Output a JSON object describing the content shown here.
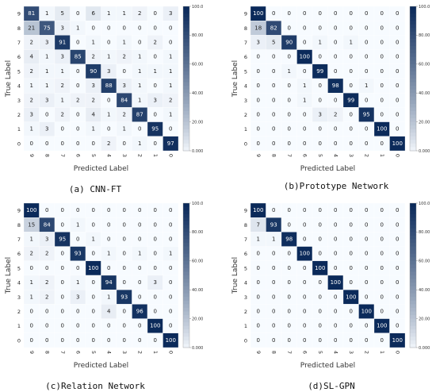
{
  "chart_data": [
    {
      "type": "heatmap",
      "caption": "(a) CNN-FT",
      "xlabel": "Predicted Label",
      "ylabel": "True Label",
      "x_categories": [
        "9",
        "8",
        "7",
        "6",
        "5",
        "4",
        "3",
        "2",
        "1",
        "0"
      ],
      "y_categories": [
        "9",
        "8",
        "7",
        "6",
        "5",
        "4",
        "3",
        "2",
        "1",
        "0"
      ],
      "colorbar": {
        "min": 0,
        "max": 100,
        "ticks": [
          "100.0",
          "80.00",
          "60.00",
          "40.00",
          "20.00",
          "0.000"
        ]
      },
      "matrix": [
        [
          81,
          1,
          5,
          0,
          6,
          1,
          1,
          2,
          0,
          3
        ],
        [
          21,
          75,
          3,
          1,
          0,
          0,
          0,
          0,
          0,
          0
        ],
        [
          2,
          3,
          91,
          0,
          1,
          0,
          1,
          0,
          2,
          0
        ],
        [
          4,
          1,
          3,
          85,
          2,
          1,
          2,
          1,
          0,
          1
        ],
        [
          2,
          1,
          1,
          0,
          90,
          3,
          0,
          1,
          1,
          1
        ],
        [
          1,
          1,
          2,
          0,
          3,
          88,
          3,
          1,
          0,
          1
        ],
        [
          2,
          3,
          1,
          2,
          2,
          0,
          84,
          1,
          3,
          2
        ],
        [
          3,
          0,
          2,
          0,
          4,
          1,
          2,
          87,
          0,
          1
        ],
        [
          1,
          3,
          0,
          0,
          1,
          0,
          1,
          0,
          95,
          0
        ],
        [
          0,
          0,
          0,
          0,
          0,
          2,
          0,
          1,
          0,
          97
        ]
      ]
    },
    {
      "type": "heatmap",
      "caption": "(b)Prototype Network",
      "xlabel": "Predicted Label",
      "ylabel": "True Label",
      "x_categories": [
        "9",
        "8",
        "7",
        "6",
        "5",
        "4",
        "3",
        "2",
        "1",
        "0"
      ],
      "y_categories": [
        "9",
        "8",
        "7",
        "6",
        "5",
        "4",
        "3",
        "2",
        "1",
        "0"
      ],
      "colorbar": {
        "min": 0,
        "max": 100,
        "ticks": [
          "100.0",
          "80.00",
          "60.00",
          "40.00",
          "20.00",
          "0.000"
        ]
      },
      "matrix": [
        [
          100,
          0,
          0,
          0,
          0,
          0,
          0,
          0,
          0,
          0
        ],
        [
          18,
          82,
          0,
          0,
          0,
          0,
          0,
          0,
          0,
          0
        ],
        [
          3,
          5,
          90,
          0,
          1,
          0,
          1,
          0,
          0,
          0
        ],
        [
          0,
          0,
          0,
          100,
          0,
          0,
          0,
          0,
          0,
          0
        ],
        [
          0,
          0,
          1,
          0,
          99,
          0,
          0,
          0,
          0,
          0
        ],
        [
          0,
          0,
          0,
          1,
          0,
          98,
          0,
          1,
          0,
          0
        ],
        [
          0,
          0,
          0,
          1,
          0,
          0,
          99,
          0,
          0,
          0
        ],
        [
          0,
          0,
          0,
          0,
          3,
          2,
          0,
          95,
          0,
          0
        ],
        [
          0,
          0,
          0,
          0,
          0,
          0,
          0,
          0,
          100,
          0
        ],
        [
          0,
          0,
          0,
          0,
          0,
          0,
          0,
          0,
          0,
          100
        ]
      ]
    },
    {
      "type": "heatmap",
      "caption": "(c)Relation Network",
      "xlabel": "Predicted Label",
      "ylabel": "True Label",
      "x_categories": [
        "9",
        "8",
        "7",
        "6",
        "5",
        "4",
        "3",
        "2",
        "1",
        "0"
      ],
      "y_categories": [
        "9",
        "8",
        "7",
        "6",
        "5",
        "4",
        "3",
        "2",
        "1",
        "0"
      ],
      "colorbar": {
        "min": 0,
        "max": 100,
        "ticks": [
          "100.0",
          "80.00",
          "60.00",
          "40.00",
          "20.00",
          "0.000"
        ]
      },
      "matrix": [
        [
          100,
          0,
          0,
          0,
          0,
          0,
          0,
          0,
          0,
          0
        ],
        [
          15,
          84,
          0,
          1,
          0,
          0,
          0,
          0,
          0,
          0
        ],
        [
          1,
          3,
          95,
          0,
          1,
          0,
          0,
          0,
          0,
          0
        ],
        [
          2,
          2,
          0,
          93,
          0,
          1,
          0,
          1,
          0,
          1
        ],
        [
          0,
          0,
          0,
          0,
          100,
          0,
          0,
          0,
          0,
          0
        ],
        [
          1,
          2,
          0,
          1,
          0,
          94,
          0,
          0,
          3,
          0
        ],
        [
          1,
          2,
          0,
          3,
          0,
          1,
          93,
          0,
          0,
          0
        ],
        [
          0,
          0,
          0,
          0,
          0,
          4,
          0,
          96,
          0,
          0
        ],
        [
          0,
          0,
          0,
          0,
          0,
          0,
          0,
          0,
          100,
          0
        ],
        [
          0,
          0,
          0,
          0,
          0,
          0,
          0,
          0,
          0,
          100
        ]
      ]
    },
    {
      "type": "heatmap",
      "caption": "(d)SL-GPN",
      "xlabel": "Predicted Label",
      "ylabel": "True Label",
      "x_categories": [
        "9",
        "8",
        "7",
        "6",
        "5",
        "4",
        "3",
        "2",
        "1",
        "0"
      ],
      "y_categories": [
        "9",
        "8",
        "7",
        "6",
        "5",
        "4",
        "3",
        "2",
        "1",
        "0"
      ],
      "colorbar": {
        "min": 0,
        "max": 100,
        "ticks": [
          "100.0",
          "80.00",
          "60.00",
          "40.00",
          "20.00",
          "0.000"
        ]
      },
      "matrix": [
        [
          100,
          0,
          0,
          0,
          0,
          0,
          0,
          0,
          0,
          0
        ],
        [
          7,
          93,
          0,
          0,
          0,
          0,
          0,
          0,
          0,
          0
        ],
        [
          1,
          1,
          98,
          0,
          0,
          0,
          0,
          0,
          0,
          0
        ],
        [
          0,
          0,
          0,
          100,
          0,
          0,
          0,
          0,
          0,
          0
        ],
        [
          0,
          0,
          0,
          0,
          100,
          0,
          0,
          0,
          0,
          0
        ],
        [
          0,
          0,
          0,
          0,
          0,
          100,
          0,
          0,
          0,
          0
        ],
        [
          0,
          0,
          0,
          0,
          0,
          0,
          100,
          0,
          0,
          0
        ],
        [
          0,
          0,
          0,
          0,
          0,
          0,
          0,
          100,
          0,
          0
        ],
        [
          0,
          0,
          0,
          0,
          0,
          0,
          0,
          0,
          100,
          0
        ],
        [
          0,
          0,
          0,
          0,
          0,
          0,
          0,
          0,
          0,
          100
        ]
      ]
    }
  ],
  "colors": {
    "low": "#f7fbff",
    "high": "#0b2a5a",
    "text_dark": "#222222",
    "text_light": "#ffffff"
  }
}
